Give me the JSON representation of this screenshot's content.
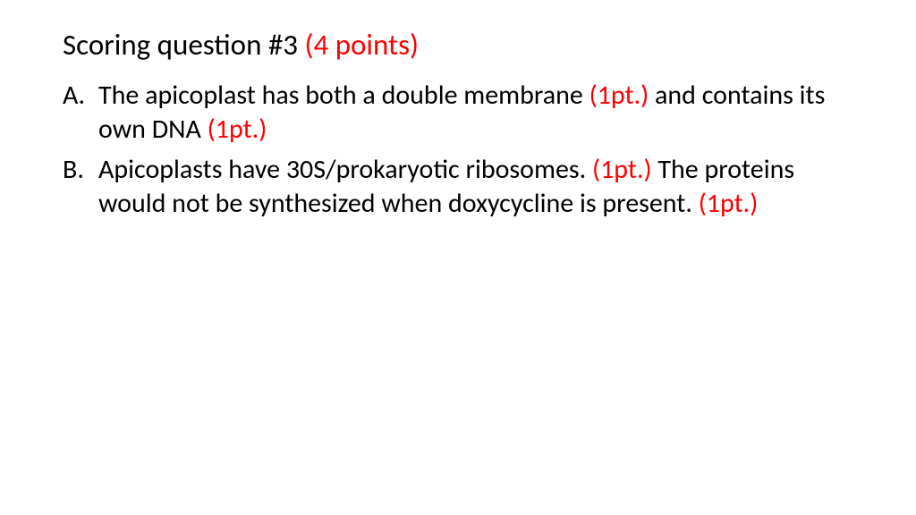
{
  "title": {
    "text_prefix": "Scoring question #3 ",
    "points": "(4 points)",
    "fontsize": 33,
    "color_text": "#000000",
    "color_points": "#ff0000"
  },
  "items": [
    {
      "marker": "A.",
      "segments": [
        {
          "text": "The apicoplast has both a double membrane ",
          "color": "#000000"
        },
        {
          "text": "(1pt.)",
          "color": "#ff0000"
        },
        {
          "text": " and contains its own DNA ",
          "color": "#000000"
        },
        {
          "text": "(1pt.)",
          "color": "#ff0000"
        }
      ]
    },
    {
      "marker": "B.",
      "segments": [
        {
          "text": "Apicoplasts have 30S/prokaryotic ribosomes. ",
          "color": "#000000"
        },
        {
          "text": "(1pt.)",
          "color": "#ff0000"
        },
        {
          "text": " The proteins would not be synthesized when doxycycline is present. ",
          "color": "#000000"
        },
        {
          "text": "(1pt.)",
          "color": "#ff0000"
        }
      ]
    }
  ],
  "body_fontsize": 30,
  "background_color": "#ffffff"
}
